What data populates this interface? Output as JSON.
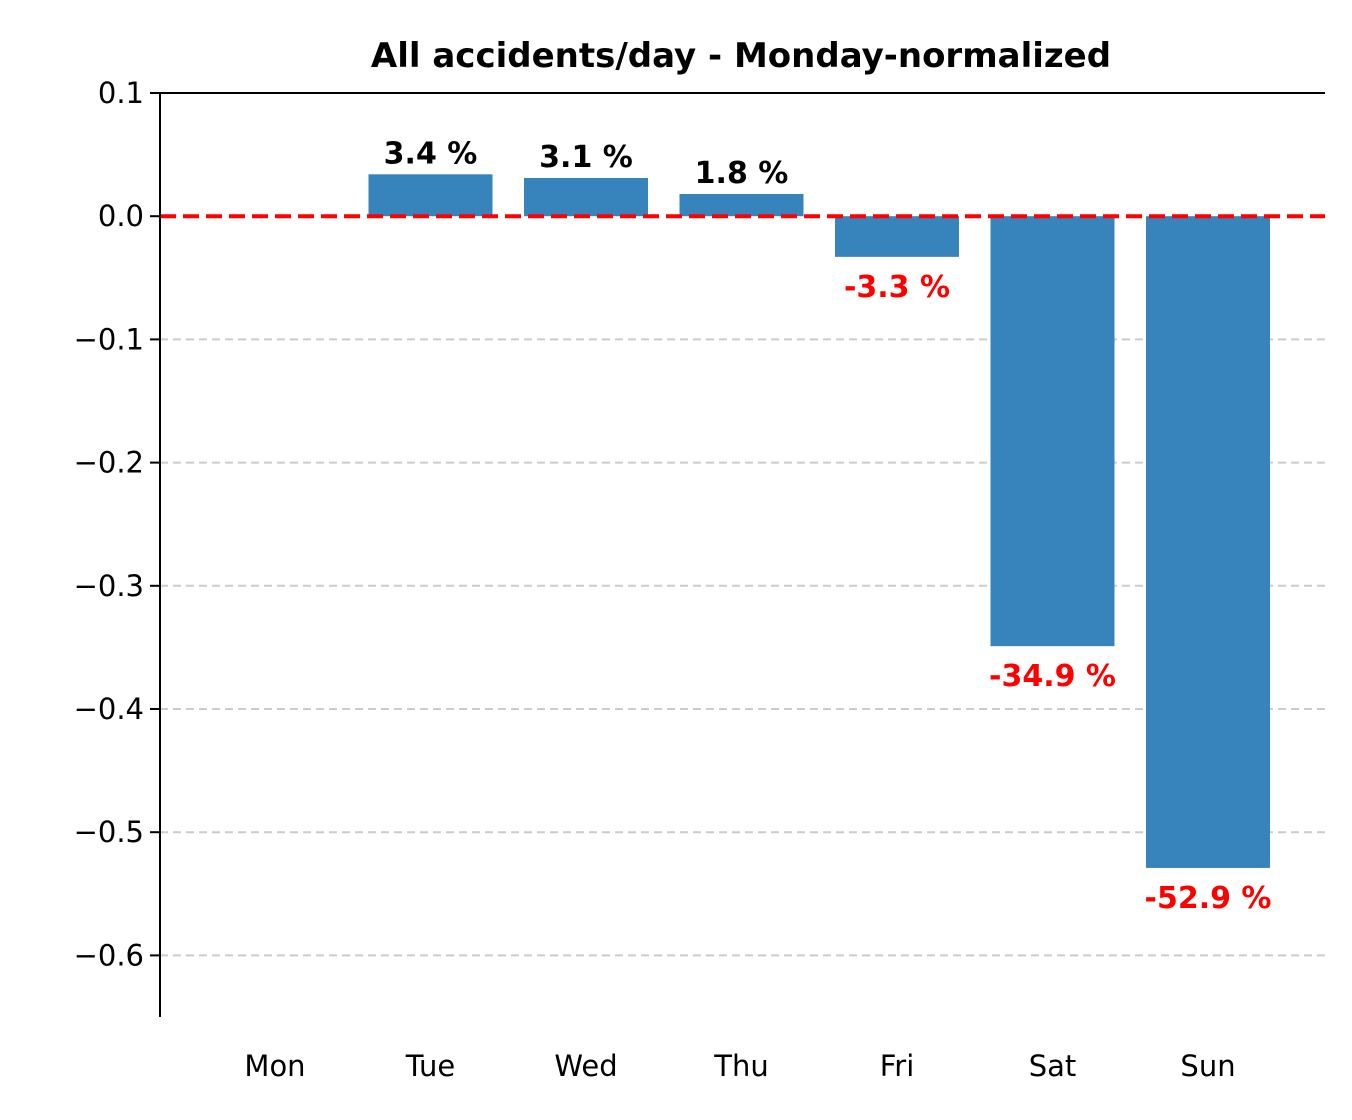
{
  "chart_data": {
    "type": "bar",
    "title": "All accidents/day - Monday-normalized",
    "xlabel": "",
    "ylabel": "",
    "categories": [
      "Mon",
      "Tue",
      "Wed",
      "Thu",
      "Fri",
      "Sat",
      "Sun"
    ],
    "values": [
      0.0,
      0.034,
      0.031,
      0.018,
      -0.033,
      -0.349,
      -0.529
    ],
    "data_labels": [
      "",
      "3.4 %",
      "3.1 %",
      "1.8 %",
      "-3.3 %",
      "-34.9 %",
      "-52.9 %"
    ],
    "ylim": [
      -0.65,
      0.1
    ],
    "yticks": [
      0.1,
      0.0,
      -0.1,
      -0.2,
      -0.3,
      -0.4,
      -0.5,
      -0.6
    ],
    "ytick_labels": [
      "0.1",
      "0.0",
      "−0.1",
      "−0.2",
      "−0.3",
      "−0.4",
      "−0.5",
      "−0.6"
    ],
    "reference_line": {
      "y": 0.0,
      "style": "dashed"
    },
    "grid": {
      "y": true,
      "style": "dashed"
    },
    "legend": "none",
    "colors": {
      "bar": "#3684bb",
      "positive_label": "#000000",
      "negative_label": "#ff0000",
      "reference_line": "#ff0000",
      "grid": "#cccccc"
    }
  }
}
